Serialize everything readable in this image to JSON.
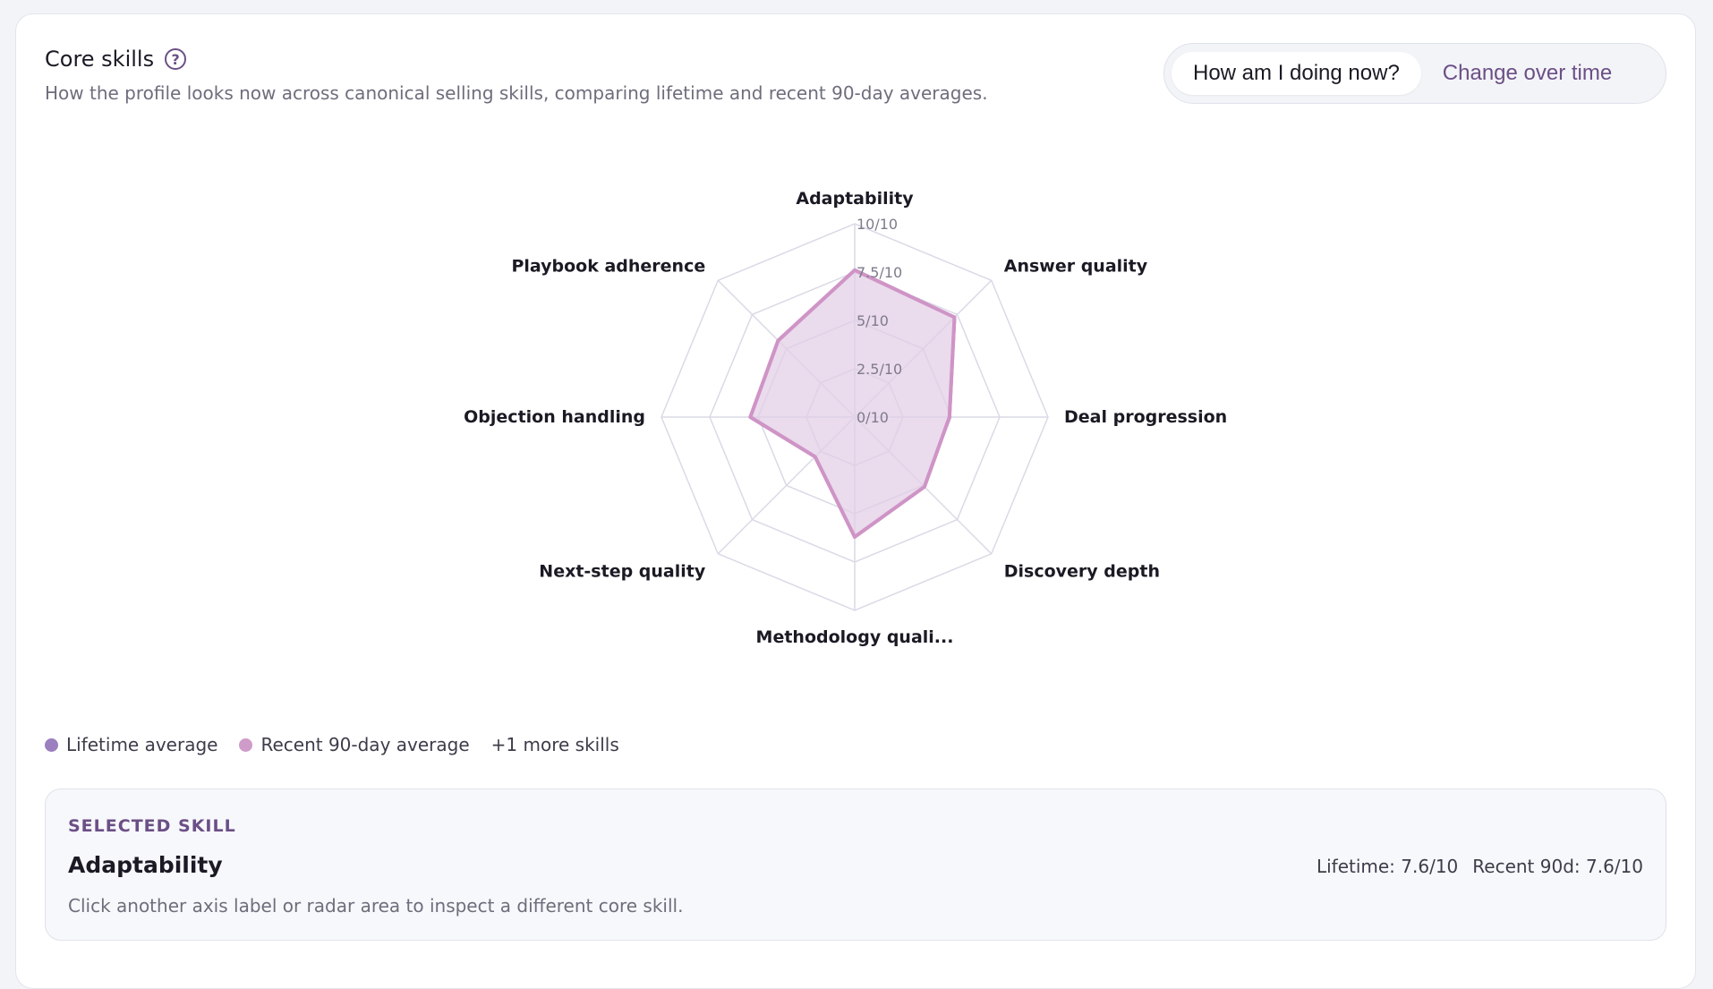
{
  "header": {
    "title": "Core skills",
    "subtitle": "How the profile looks now across canonical selling skills, comparing lifetime and recent 90-day averages."
  },
  "toggle": {
    "options": [
      "How am I doing now?",
      "Change over time"
    ],
    "active": "How am I doing now?"
  },
  "chart_data": {
    "type": "radar",
    "axes": [
      "Adaptability",
      "Answer quality",
      "Deal progression",
      "Discovery depth",
      "Methodology quali...",
      "Next-step quality",
      "Objection handling",
      "Playbook adherence"
    ],
    "tick_labels": [
      "0/10",
      "2.5/10",
      "5/10",
      "7.5/10",
      "10/10"
    ],
    "range": [
      0,
      10
    ],
    "series": [
      {
        "name": "Lifetime average",
        "values": [
          7.6,
          7.3,
          4.9,
          5.1,
          6.2,
          2.9,
          5.4,
          5.6
        ]
      },
      {
        "name": "Recent 90-day average",
        "values": [
          7.6,
          7.3,
          4.9,
          5.1,
          6.2,
          2.9,
          5.4,
          5.6
        ]
      }
    ]
  },
  "legend": {
    "items": [
      {
        "label": "Lifetime average",
        "color": "#9b7fbf"
      },
      {
        "label": "Recent 90-day average",
        "color": "#cf9bc9"
      }
    ],
    "more": "+1 more skills"
  },
  "selected": {
    "eyebrow": "SELECTED SKILL",
    "name": "Adaptability",
    "lifetime": "Lifetime: 7.6/10",
    "recent": "Recent 90d: 7.6/10",
    "hint": "Click another axis label or radar area to inspect a different core skill."
  },
  "colors": {
    "accent": "#6b4f86",
    "grid": "#d9dae6",
    "series_stroke": "#cf94c6",
    "series_fill": "#e3cfe7"
  }
}
